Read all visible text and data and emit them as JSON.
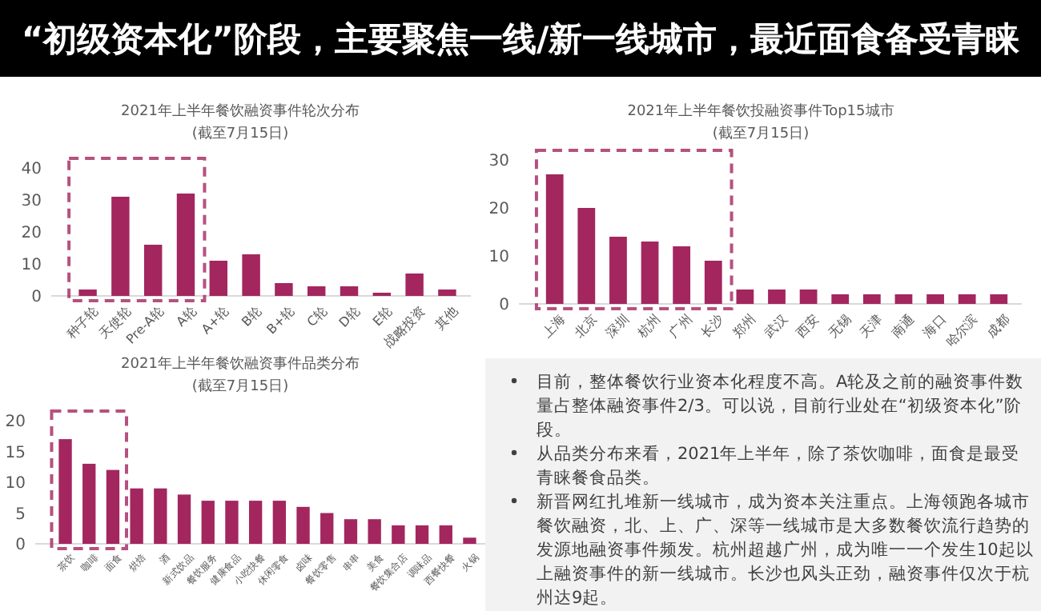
{
  "chart_data": [
    {
      "type": "other",
      "title": "“初级资本化”阶段，主要聚焦一线/新一线城市，最近面食备受青睐"
    },
    {
      "type": "bar",
      "title": "2021年上半年餐饮融资事件轮次分布",
      "subtitle": "(截至7月15日)",
      "categories": [
        "种子轮",
        "天使轮",
        "Pre-A轮",
        "A轮",
        "A+轮",
        "B轮",
        "B+轮",
        "C轮",
        "D轮",
        "E轮",
        "战略投资",
        "其他"
      ],
      "values": [
        2,
        31,
        16,
        32,
        11,
        13,
        4,
        3,
        3,
        1,
        7,
        2
      ],
      "color": "#a3265f",
      "ylim": [
        0,
        40
      ],
      "yticks": [
        0,
        10,
        20,
        30,
        40
      ],
      "grid": false
    },
    {
      "type": "bar",
      "title": "2021年上半年餐饮投融资事件Top15城市",
      "subtitle": "(截至7月15日)",
      "categories": [
        "上海",
        "北京",
        "深圳",
        "杭州",
        "广州",
        "长沙",
        "郑州",
        "武汉",
        "西安",
        "无锡",
        "天津",
        "南通",
        "海口",
        "哈尔滨",
        "成都"
      ],
      "values": [
        27,
        20,
        14,
        13,
        12,
        9,
        3,
        3,
        3,
        2,
        2,
        2,
        2,
        2,
        2
      ],
      "color": "#a3265f",
      "ylim": [
        0,
        30
      ],
      "yticks": [
        0,
        10,
        20,
        30
      ],
      "grid": false
    },
    {
      "type": "bar",
      "title": "2021年上半年餐饮融资事件品类分布",
      "subtitle": "(截至7月15日)",
      "categories": [
        "茶饮",
        "咖啡",
        "面食",
        "烘焙",
        "酒",
        "新式饮品",
        "餐饮服务",
        "健康食品",
        "小吃快餐",
        "休闲零食",
        "卤味",
        "餐饮零售",
        "串串",
        "美食",
        "餐饮集合店",
        "调味品",
        "西餐快餐",
        "火锅"
      ],
      "values": [
        17,
        13,
        12,
        9,
        9,
        8,
        7,
        7,
        7,
        7,
        6,
        5,
        4,
        4,
        3,
        3,
        3,
        1
      ],
      "color": "#a3265f",
      "ylim": [
        0,
        20
      ],
      "yticks": [
        0,
        5,
        10,
        15,
        20
      ],
      "grid": false
    },
    {
      "type": "other",
      "annotations": [
        "目前，整体餐饮行业资本化程度不高。A轮及之前的融资事件数量占整体融资事件2/3。可以说，目前行业处在“初级资本化”阶段。",
        "从品类分布来看，2021年上半年，除了茶饮咖啡，面食是最受青睐餐食品类。",
        "新晋网红扎堆新一线城市，成为资本关注重点。上海领跑各城市餐饮融资，北、上、广、深等一线城市是大多数餐饮流行趋势的发源地融资事件频发。杭州超越广州，成为唯一一个发生10起以上融资事件的新一线城市。长沙也风头正劲，融资事件仅次于杭州达9起。"
      ]
    }
  ]
}
